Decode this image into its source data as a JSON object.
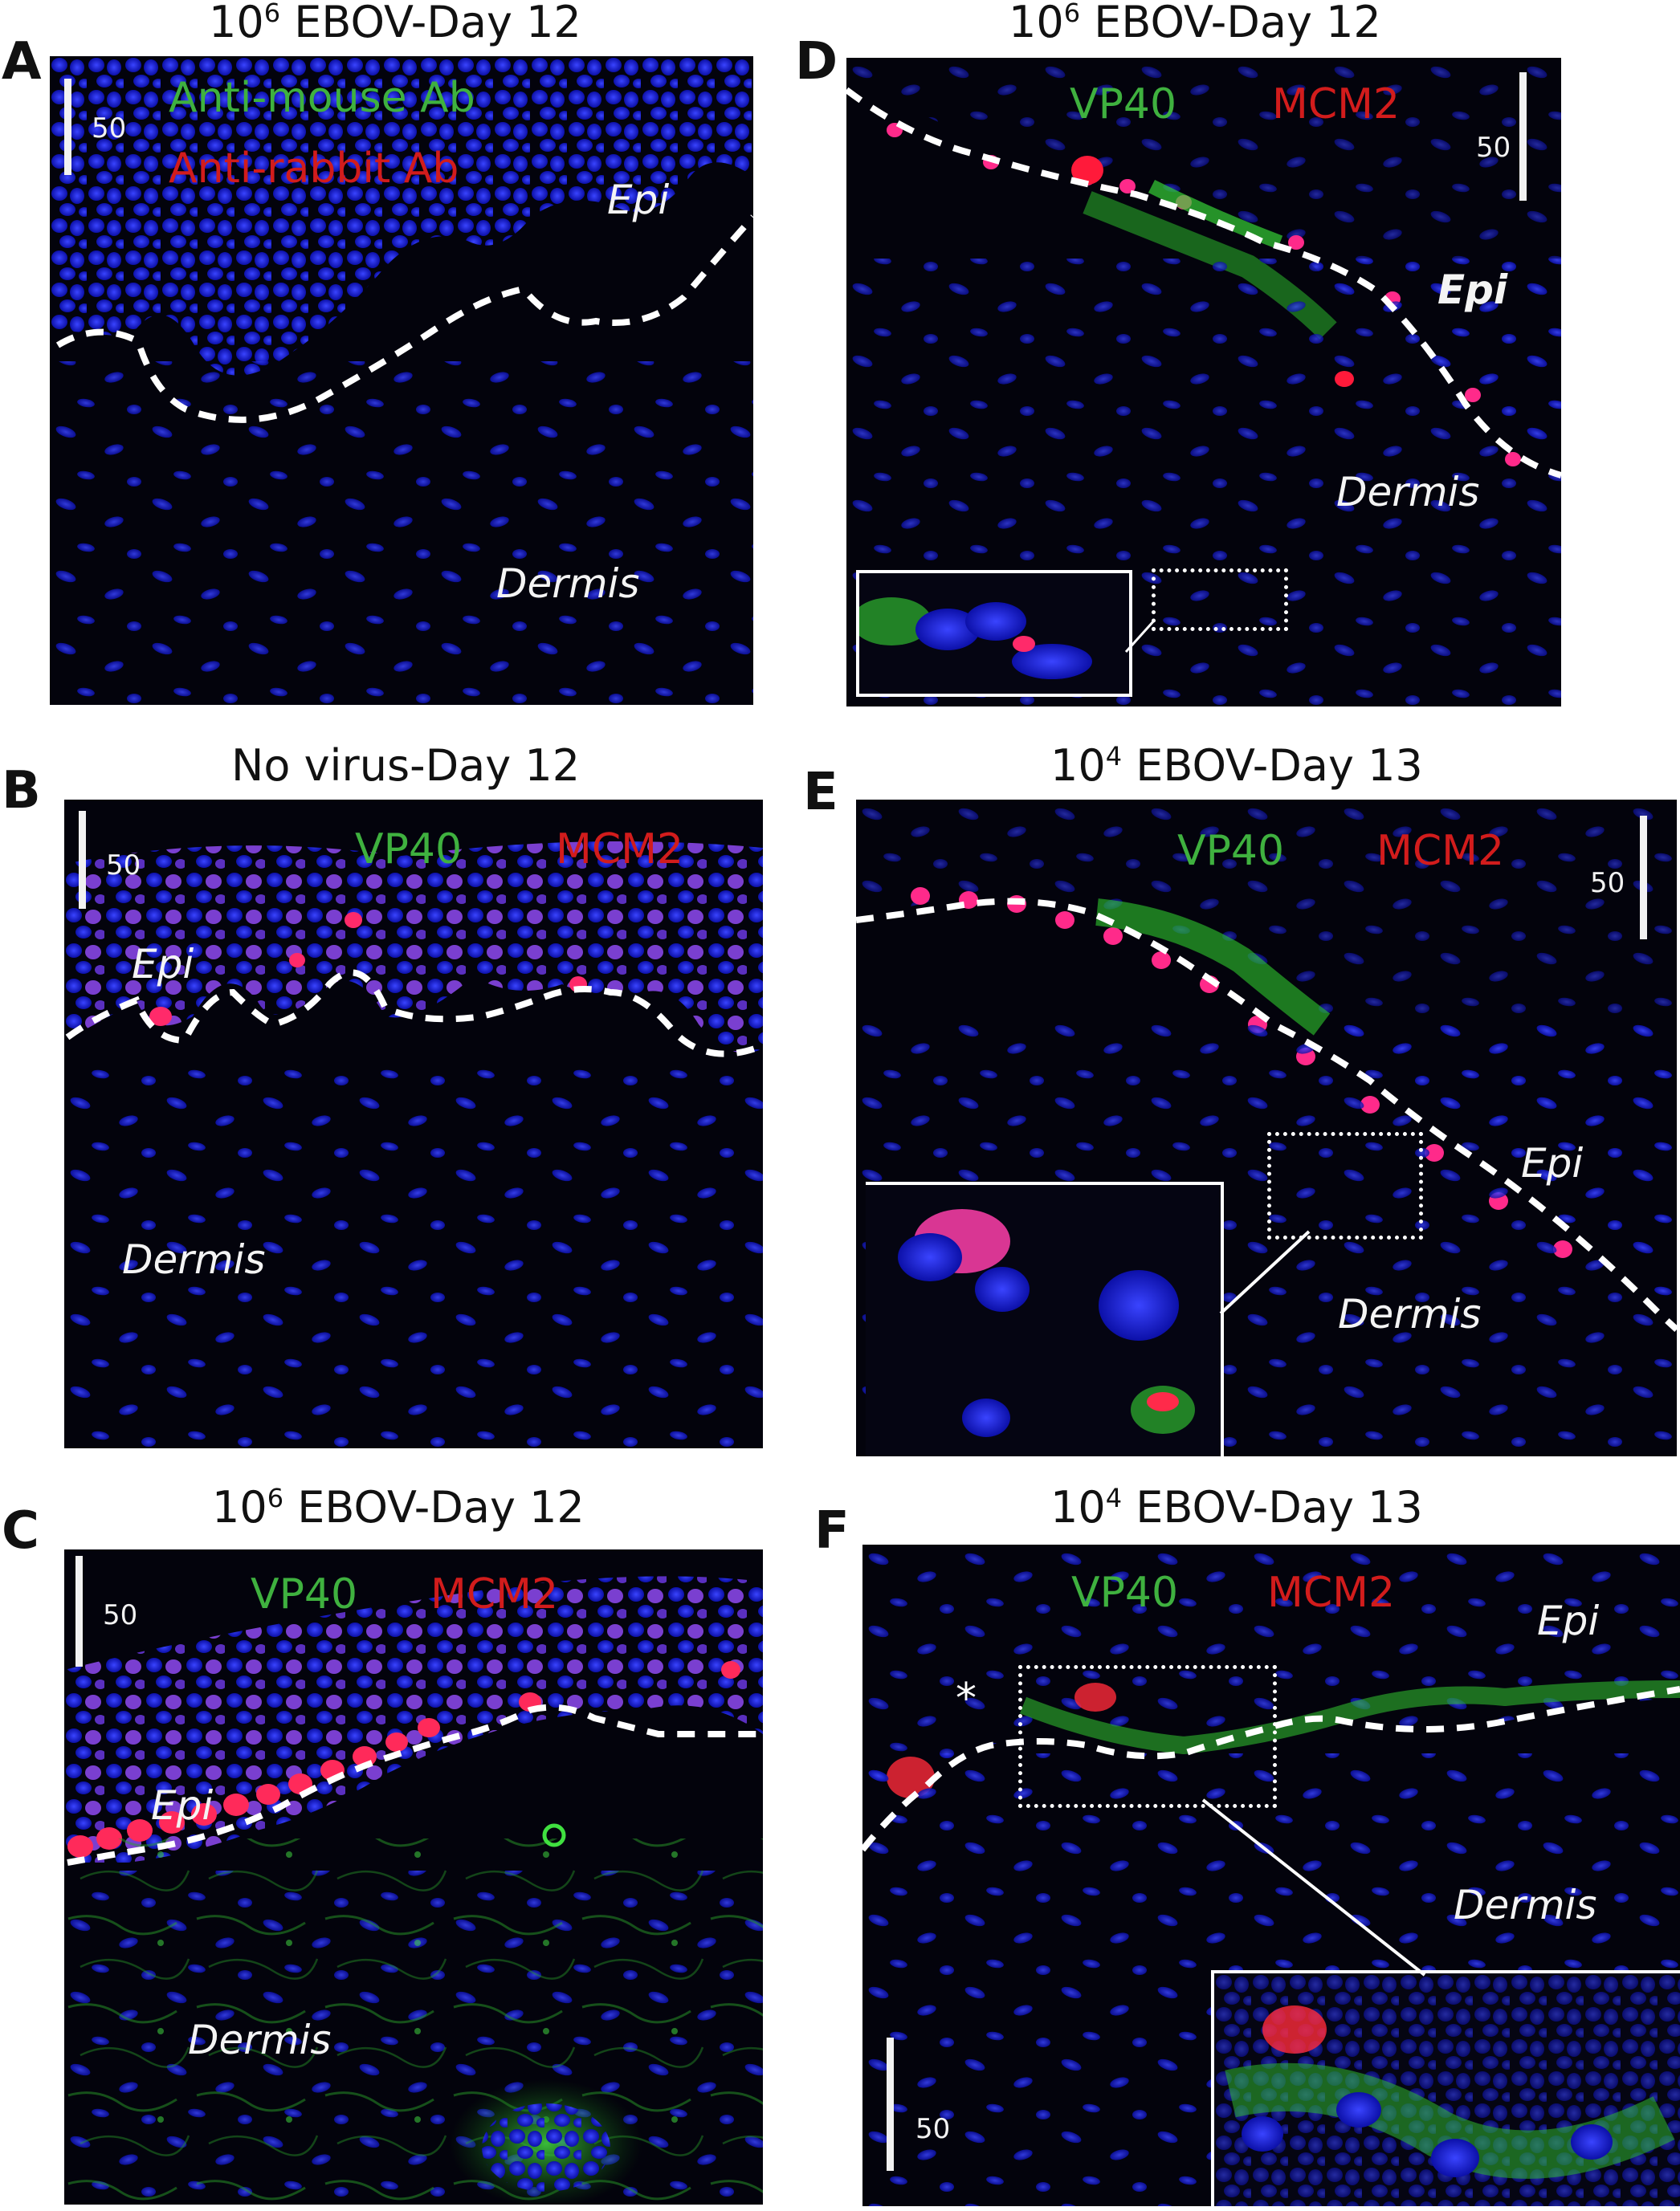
{
  "panels": {
    "A": {
      "letter": "A",
      "title_base": "10",
      "title_sup": "6",
      "title_rest": " EBOV-Day 12",
      "label_green": "Anti-mouse Ab",
      "label_red": "Anti-rabbit Ab",
      "epi": "Epi",
      "dermis": "Dermis",
      "scale": "50"
    },
    "B": {
      "letter": "B",
      "title": "No virus-Day 12",
      "label_green": "VP40",
      "label_red": "MCM2",
      "epi": "Epi",
      "dermis": "Dermis",
      "scale": "50"
    },
    "C": {
      "letter": "C",
      "title_base": "10",
      "title_sup": "6",
      "title_rest": " EBOV-Day 12",
      "label_green": "VP40",
      "label_red": "MCM2",
      "epi": "Epi",
      "dermis": "Dermis",
      "scale": "50"
    },
    "D": {
      "letter": "D",
      "title_base": "10",
      "title_sup": "6",
      "title_rest": " EBOV-Day 12",
      "label_green": "VP40",
      "label_red": "MCM2",
      "epi": "Epi",
      "dermis": "Dermis",
      "scale": "50"
    },
    "E": {
      "letter": "E",
      "title_base": "10",
      "title_sup": "4",
      "title_rest": " EBOV-Day 13",
      "label_green": "VP40",
      "label_red": "MCM2",
      "epi": "Epi",
      "dermis": "Dermis",
      "scale": "50"
    },
    "F": {
      "letter": "F",
      "title_base": "10",
      "title_sup": "4",
      "title_rest": " EBOV-Day 13",
      "label_green": "VP40",
      "label_red": "MCM2",
      "epi": "Epi",
      "dermis": "Dermis",
      "scale": "50",
      "asterisk": "*"
    }
  },
  "colors": {
    "nuclei": "#1a1fd6",
    "vp40": "#33b233",
    "mcm2": "#e0103a",
    "background": "#03030c"
  }
}
